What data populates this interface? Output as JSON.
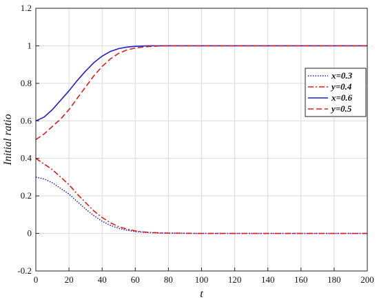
{
  "chart_data": {
    "type": "line",
    "title": "",
    "xlabel": "t",
    "ylabel": "Initial ratio",
    "xlim": [
      0,
      200
    ],
    "ylim": [
      -0.2,
      1.2
    ],
    "grid": true,
    "legend_position": "right",
    "xticks": [
      0,
      20,
      40,
      60,
      80,
      100,
      120,
      140,
      160,
      180,
      200
    ],
    "xtick_labels": [
      "0",
      "20",
      "40",
      "60",
      "80",
      "100",
      "120",
      "140",
      "160",
      "180",
      "200"
    ],
    "yticks": [
      -0.2,
      0,
      0.2,
      0.4,
      0.6,
      0.8,
      1,
      1.2
    ],
    "ytick_labels": [
      "-0.2",
      "0",
      "0.2",
      "0.4",
      "0.6",
      "0.8",
      "1",
      "1.2"
    ],
    "x": [
      0,
      5,
      10,
      15,
      20,
      25,
      30,
      35,
      40,
      45,
      50,
      55,
      60,
      65,
      70,
      75,
      80,
      90,
      100,
      120,
      140,
      160,
      180,
      200
    ],
    "series": [
      {
        "name": "x=0.3",
        "color": "#1f1fcf",
        "style": "dotted",
        "values": [
          0.3,
          0.29,
          0.27,
          0.24,
          0.21,
          0.17,
          0.13,
          0.095,
          0.065,
          0.043,
          0.027,
          0.017,
          0.01,
          0.006,
          0.004,
          0.002,
          0.001,
          0.0005,
          0,
          0,
          0,
          0,
          0,
          0
        ]
      },
      {
        "name": "y=0.4",
        "color": "#e01a1a",
        "style": "dashdot",
        "values": [
          0.4,
          0.37,
          0.34,
          0.3,
          0.26,
          0.21,
          0.165,
          0.12,
          0.085,
          0.057,
          0.036,
          0.023,
          0.014,
          0.008,
          0.005,
          0.003,
          0.002,
          0.001,
          0,
          0,
          0,
          0,
          0,
          0
        ]
      },
      {
        "name": "x=0.6",
        "color": "#1f1fcf",
        "style": "solid",
        "values": [
          0.6,
          0.62,
          0.66,
          0.71,
          0.76,
          0.815,
          0.865,
          0.91,
          0.945,
          0.97,
          0.985,
          0.993,
          0.997,
          0.999,
          1.0,
          1.0,
          1.0,
          1.0,
          1.0,
          1.0,
          1.0,
          1.0,
          1.0,
          1.0
        ]
      },
      {
        "name": "y=0.5",
        "color": "#e01a1a",
        "style": "dashed",
        "values": [
          0.5,
          0.53,
          0.57,
          0.61,
          0.66,
          0.72,
          0.78,
          0.84,
          0.89,
          0.93,
          0.96,
          0.978,
          0.988,
          0.994,
          0.997,
          0.999,
          1.0,
          1.0,
          1.0,
          1.0,
          1.0,
          1.0,
          1.0,
          1.0
        ]
      }
    ]
  }
}
